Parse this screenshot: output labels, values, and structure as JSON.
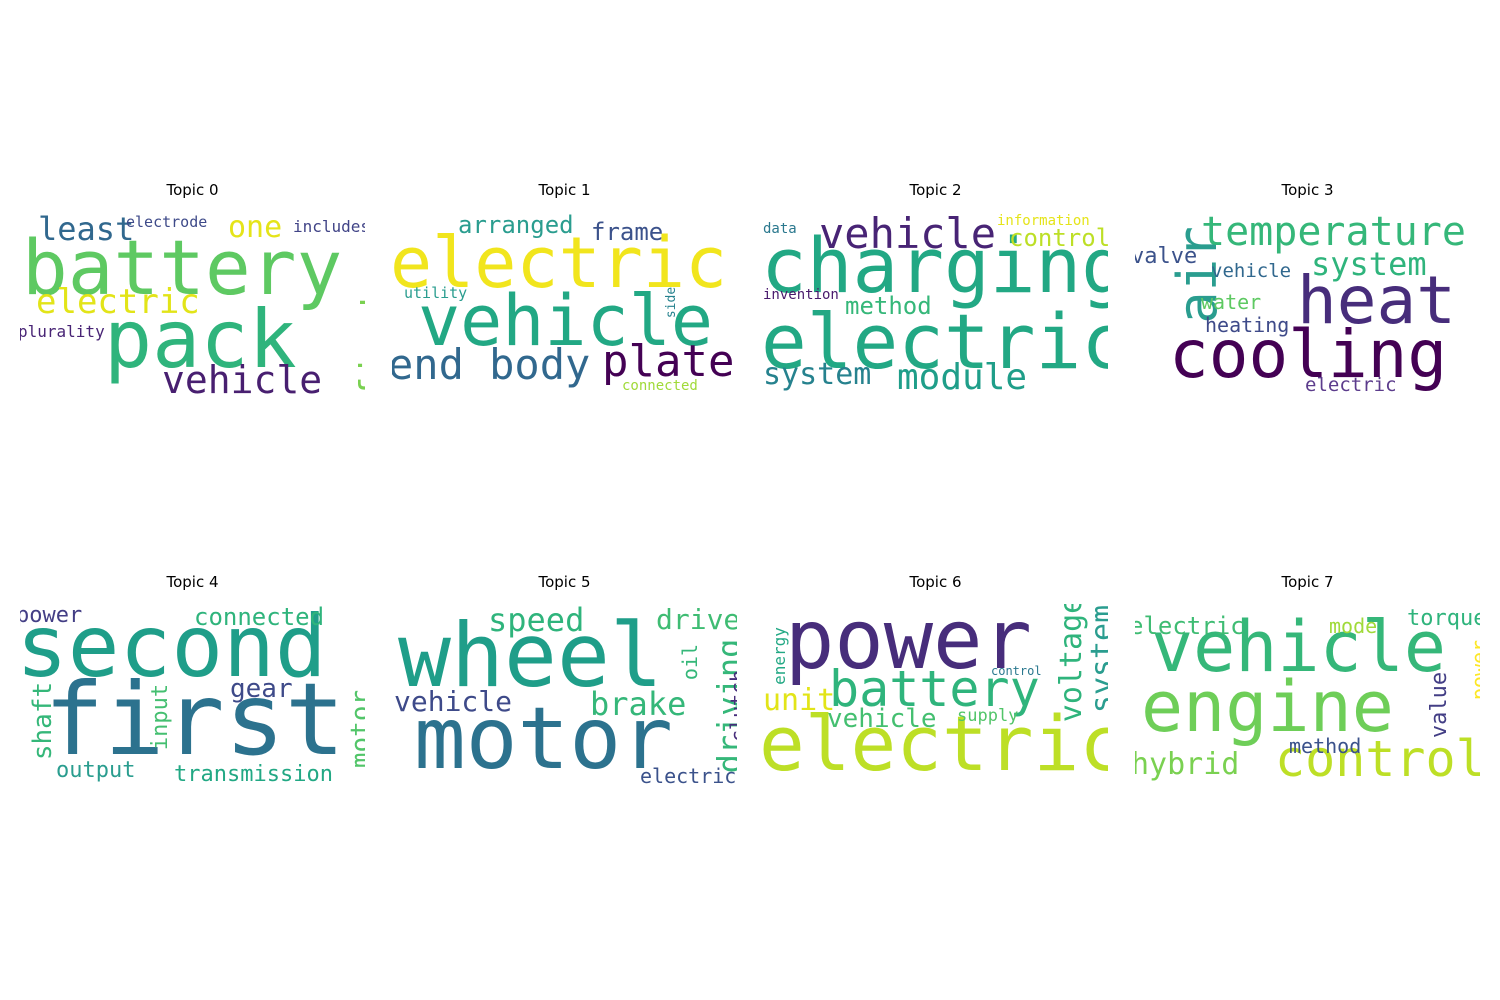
{
  "chart_data": [
    {
      "type": "wordcloud",
      "title": "Topic 0",
      "words": [
        {
          "text": "battery",
          "color": "#5ec962"
        },
        {
          "text": "pack",
          "color": "#2fb47c"
        },
        {
          "text": "vehicle",
          "color": "#481f70"
        },
        {
          "text": "electric",
          "color": "#e2e418"
        },
        {
          "text": "least",
          "color": "#31688e"
        },
        {
          "text": "one",
          "color": "#e5e419"
        },
        {
          "text": "first",
          "color": "#7ad151"
        },
        {
          "text": "electrode",
          "color": "#3e4a89"
        },
        {
          "text": "includes",
          "color": "#414487"
        },
        {
          "text": "plurality",
          "color": "#482475"
        }
      ]
    },
    {
      "type": "wordcloud",
      "title": "Topic 1",
      "words": [
        {
          "text": "electric",
          "color": "#f1e51d"
        },
        {
          "text": "vehicle",
          "color": "#22a884"
        },
        {
          "text": "plate",
          "color": "#440154"
        },
        {
          "text": "end body",
          "color": "#31688e"
        },
        {
          "text": "arranged",
          "color": "#2a9d8f"
        },
        {
          "text": "frame",
          "color": "#3b528b"
        },
        {
          "text": "utility",
          "color": "#2a9d8f"
        },
        {
          "text": "side",
          "color": "#26828e"
        },
        {
          "text": "connected",
          "color": "#a0da39"
        }
      ]
    },
    {
      "type": "wordcloud",
      "title": "Topic 2",
      "words": [
        {
          "text": "charging",
          "color": "#22a884"
        },
        {
          "text": "electric",
          "color": "#22a884"
        },
        {
          "text": "vehicle",
          "color": "#482475"
        },
        {
          "text": "module",
          "color": "#1f9e89"
        },
        {
          "text": "system",
          "color": "#26828e"
        },
        {
          "text": "method",
          "color": "#35b779"
        },
        {
          "text": "control",
          "color": "#bddf26"
        },
        {
          "text": "information",
          "color": "#e5e419"
        },
        {
          "text": "data",
          "color": "#2a788e"
        },
        {
          "text": "invention",
          "color": "#481a6c"
        }
      ]
    },
    {
      "type": "wordcloud",
      "title": "Topic 3",
      "words": [
        {
          "text": "cooling",
          "color": "#440154"
        },
        {
          "text": "heat",
          "color": "#472d7b"
        },
        {
          "text": "air",
          "color": "#2a9d8f"
        },
        {
          "text": "temperature",
          "color": "#35b779"
        },
        {
          "text": "system",
          "color": "#2fb47c"
        },
        {
          "text": "valve",
          "color": "#3b528b"
        },
        {
          "text": "vehicle",
          "color": "#31688e"
        },
        {
          "text": "water",
          "color": "#5ec962"
        },
        {
          "text": "heating",
          "color": "#3e4a89"
        },
        {
          "text": "electric",
          "color": "#5c3c8c"
        }
      ]
    },
    {
      "type": "wordcloud",
      "title": "Topic 4",
      "words": [
        {
          "text": "second",
          "color": "#1f9e89"
        },
        {
          "text": "first",
          "color": "#2c728e"
        },
        {
          "text": "connected",
          "color": "#2fb47c"
        },
        {
          "text": "power",
          "color": "#433e85"
        },
        {
          "text": "gear",
          "color": "#3e4a89"
        },
        {
          "text": "shaft",
          "color": "#35b779"
        },
        {
          "text": "input",
          "color": "#44bf70"
        },
        {
          "text": "output",
          "color": "#2a9d8f"
        },
        {
          "text": "transmission",
          "color": "#22a884"
        },
        {
          "text": "motor",
          "color": "#52c569"
        }
      ]
    },
    {
      "type": "wordcloud",
      "title": "Topic 5",
      "words": [
        {
          "text": "wheel",
          "color": "#1f9e89"
        },
        {
          "text": "motor",
          "color": "#2c728e"
        },
        {
          "text": "speed",
          "color": "#2fb47c"
        },
        {
          "text": "drive",
          "color": "#3fbc73"
        },
        {
          "text": "vehicle",
          "color": "#3e4a89"
        },
        {
          "text": "brake",
          "color": "#35b779"
        },
        {
          "text": "oil",
          "color": "#35b779"
        },
        {
          "text": "driving",
          "color": "#35b779"
        },
        {
          "text": "clutch",
          "color": "#472d7b"
        },
        {
          "text": "electric",
          "color": "#3b528b"
        }
      ]
    },
    {
      "type": "wordcloud",
      "title": "Topic 6",
      "words": [
        {
          "text": "power",
          "color": "#472d7b"
        },
        {
          "text": "battery",
          "color": "#2fb47c"
        },
        {
          "text": "electric",
          "color": "#bddf26"
        },
        {
          "text": "voltage",
          "color": "#2fb47c"
        },
        {
          "text": "system",
          "color": "#2a9d8f"
        },
        {
          "text": "unit",
          "color": "#e2e418"
        },
        {
          "text": "vehicle",
          "color": "#44bf70"
        },
        {
          "text": "energy",
          "color": "#22a884"
        },
        {
          "text": "supply",
          "color": "#52c569"
        },
        {
          "text": "control",
          "color": "#2a788e"
        }
      ]
    },
    {
      "type": "wordcloud",
      "title": "Topic 7",
      "words": [
        {
          "text": "vehicle",
          "color": "#35b779"
        },
        {
          "text": "engine",
          "color": "#6ece58"
        },
        {
          "text": "control",
          "color": "#bddf26"
        },
        {
          "text": "electric",
          "color": "#3fbc73"
        },
        {
          "text": "hybrid",
          "color": "#7ad151"
        },
        {
          "text": "method",
          "color": "#3b528b"
        },
        {
          "text": "mode",
          "color": "#a0da39"
        },
        {
          "text": "torque",
          "color": "#2fb47c"
        },
        {
          "text": "value",
          "color": "#433e85"
        },
        {
          "text": "power",
          "color": "#fde725"
        }
      ]
    }
  ]
}
